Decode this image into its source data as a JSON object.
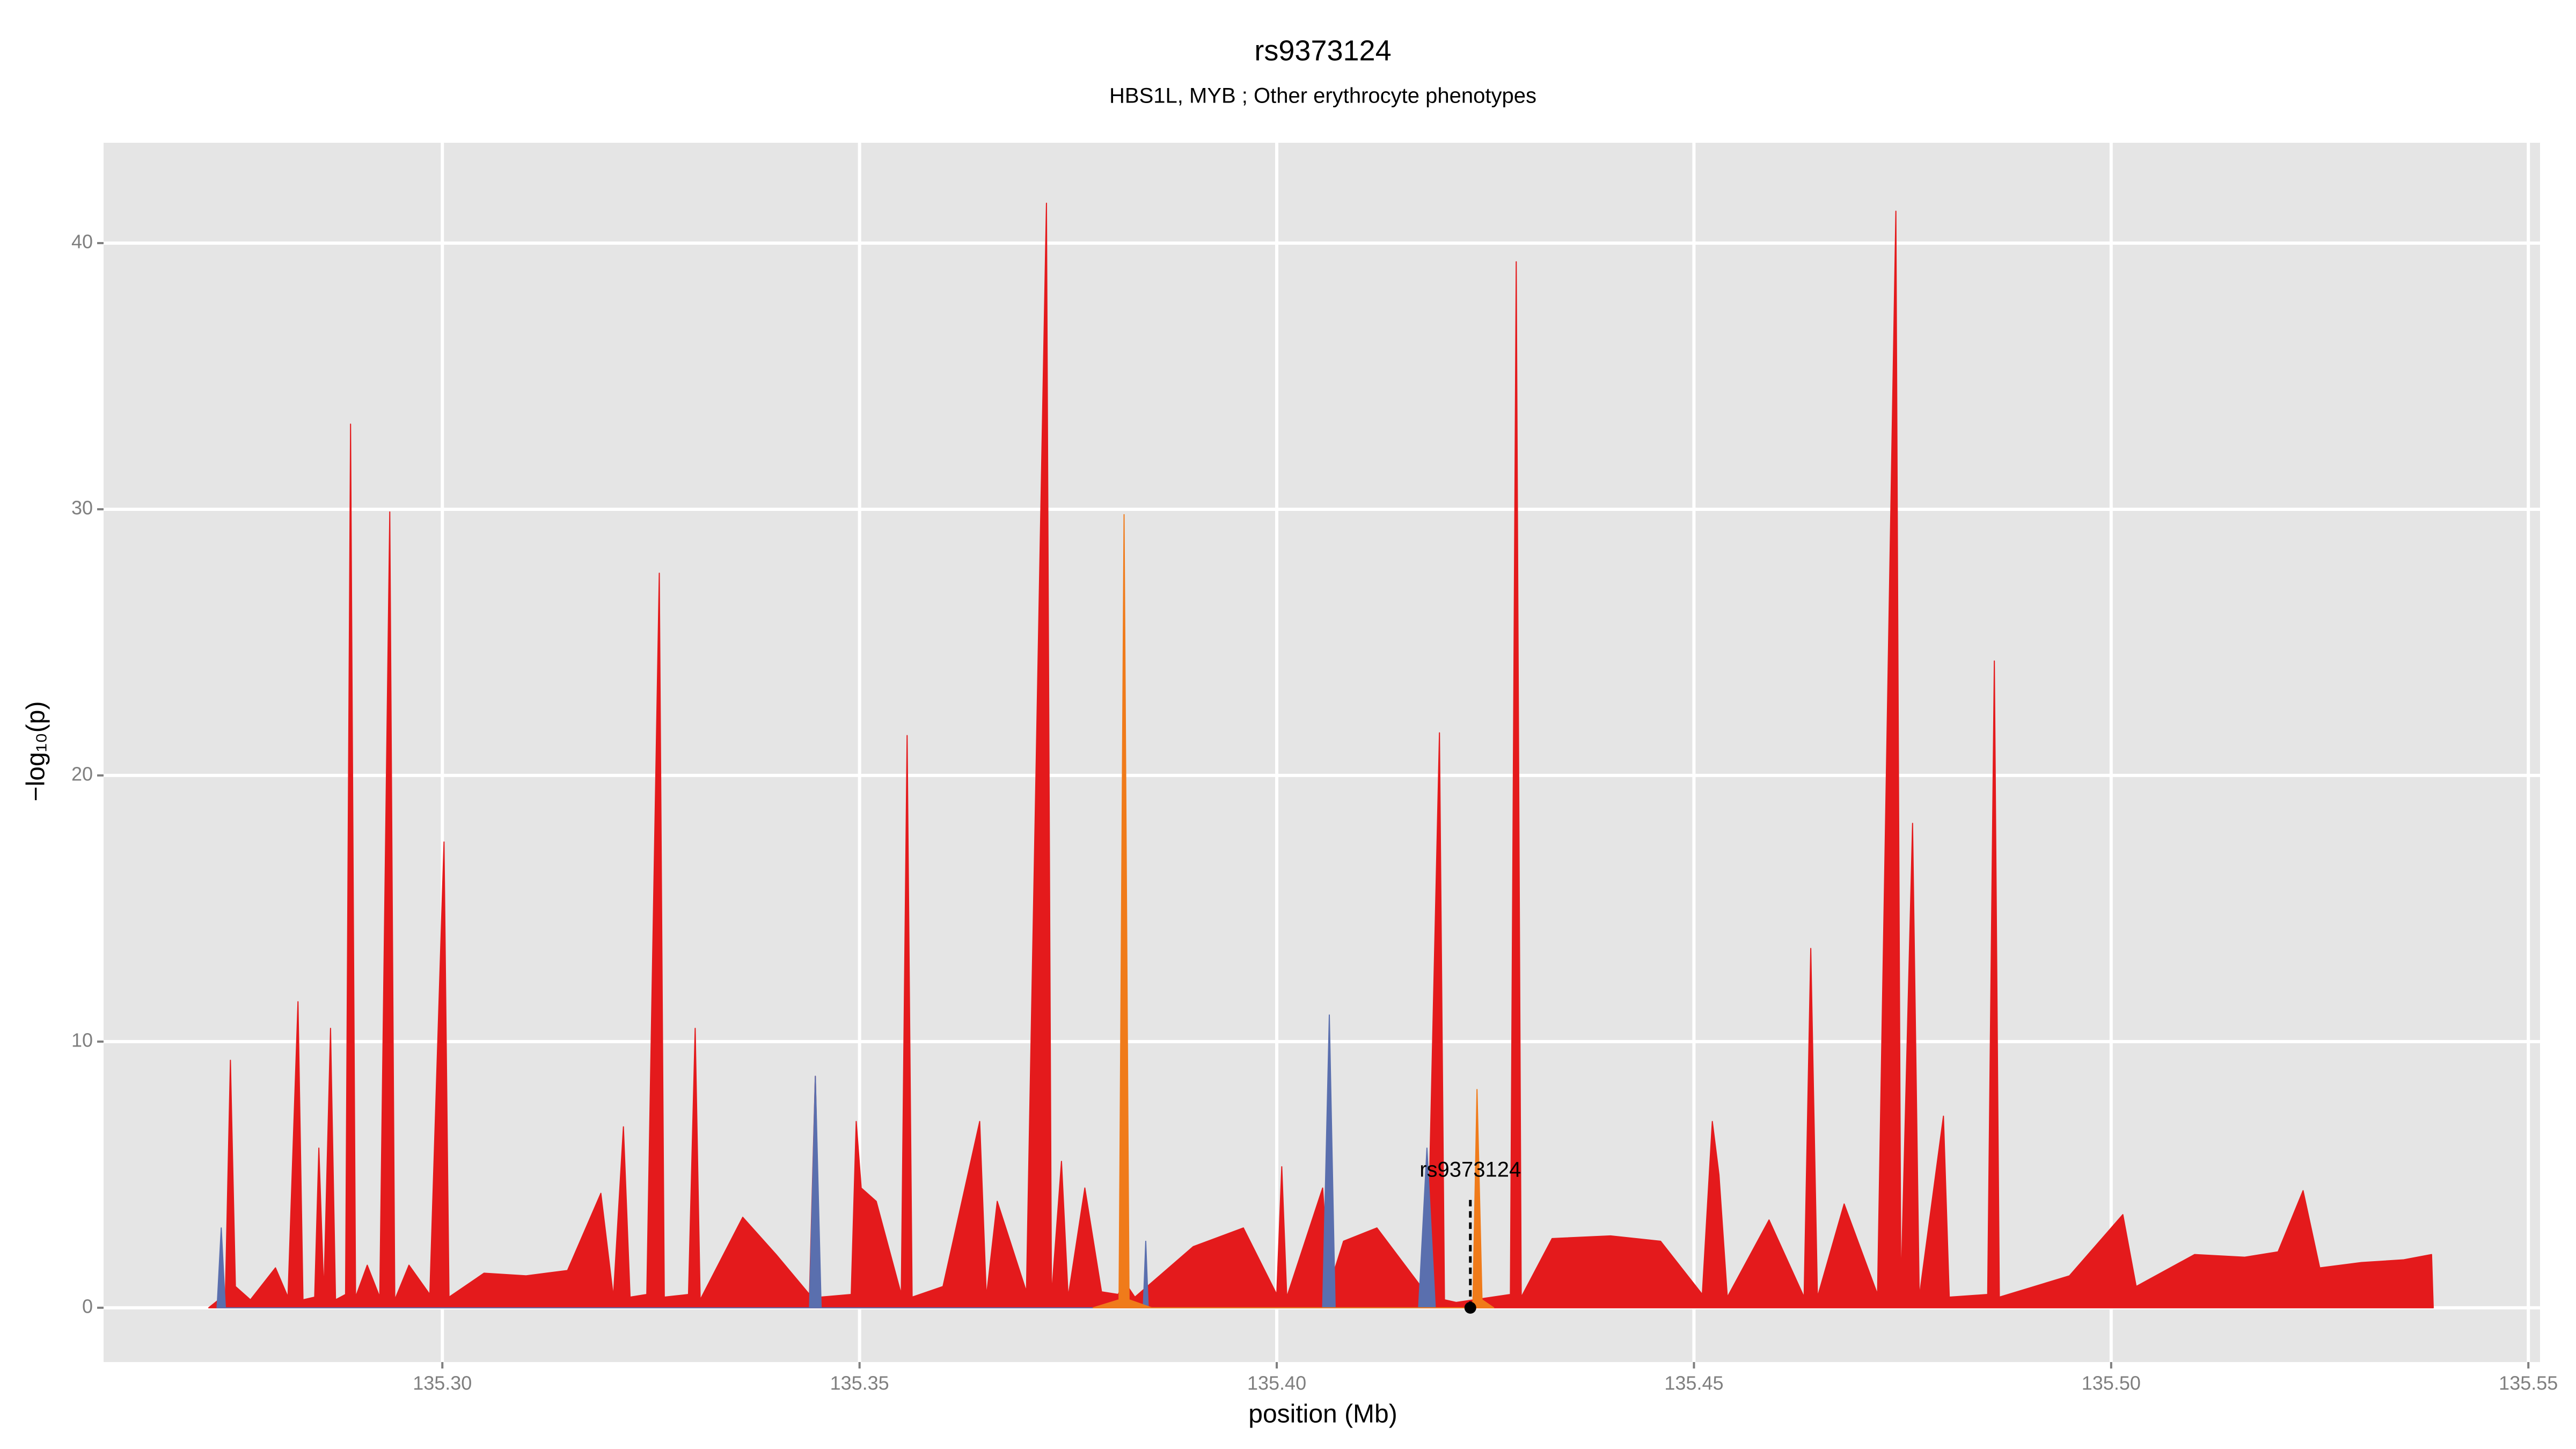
{
  "chart_data": {
    "type": "area",
    "title": "rs9373124",
    "subtitle": "HBS1L, MYB ; Other erythrocyte phenotypes",
    "xlabel": "position (Mb)",
    "ylabel": "−log₁₀(p)",
    "xlim": [
      135.2594,
      135.5514
    ],
    "ylim": [
      -2.04,
      43.77
    ],
    "xticks": [
      {
        "value": 135.3,
        "label": "135.30"
      },
      {
        "value": 135.35,
        "label": "135.35"
      },
      {
        "value": 135.4,
        "label": "135.40"
      },
      {
        "value": 135.45,
        "label": "135.45"
      },
      {
        "value": 135.5,
        "label": "135.50"
      },
      {
        "value": 135.55,
        "label": "135.55"
      }
    ],
    "yticks": [
      0,
      10,
      20,
      30,
      40
    ],
    "grid": true,
    "series": [
      {
        "color": "#e41a1c",
        "x": [
          135.272,
          135.274,
          135.2746,
          135.2752,
          135.277,
          135.28,
          135.2815,
          135.2827,
          135.2833,
          135.2847,
          135.2852,
          135.2858,
          135.2866,
          135.2872,
          135.2884,
          135.289,
          135.2896,
          135.291,
          135.2925,
          135.2937,
          135.2943,
          135.296,
          135.2985,
          135.3002,
          135.3008,
          135.305,
          135.31,
          135.315,
          135.319,
          135.3205,
          135.3217,
          135.3225,
          135.3245,
          135.326,
          135.3266,
          135.3295,
          135.3303,
          135.3309,
          135.336,
          135.34,
          135.344,
          135.3447,
          135.3453,
          135.349,
          135.3496,
          135.3502,
          135.352,
          135.355,
          135.3557,
          135.3563,
          135.36,
          135.3644,
          135.3652,
          135.3665,
          135.37,
          135.3724,
          135.373,
          135.3742,
          135.375,
          135.377,
          135.379,
          135.381,
          135.3817,
          135.383,
          135.39,
          135.396,
          135.4,
          135.4006,
          135.4012,
          135.4055,
          135.4063,
          135.408,
          135.412,
          135.418,
          135.4195,
          135.4201,
          135.4215,
          135.428,
          135.4287,
          135.4293,
          135.433,
          135.44,
          135.446,
          135.451,
          135.4522,
          135.453,
          135.454,
          135.459,
          135.4632,
          135.464,
          135.4648,
          135.468,
          135.472,
          135.4742,
          135.4748,
          135.4762,
          135.477,
          135.4799,
          135.4806,
          135.4852,
          135.486,
          135.4866,
          135.495,
          135.5014,
          135.503,
          135.51,
          135.516,
          135.52,
          135.523,
          135.525,
          135.53,
          135.535,
          135.5384,
          135.5386
        ],
        "values": [
          0,
          0.5,
          9.3,
          0.8,
          0.3,
          1.5,
          0.4,
          11.5,
          0.3,
          0.4,
          6,
          0.5,
          10.5,
          0.3,
          0.5,
          33.2,
          0.4,
          1.6,
          0.4,
          29.9,
          0.3,
          1.6,
          0.5,
          17.5,
          0.4,
          1.3,
          1.2,
          1.4,
          4.3,
          0.4,
          6.8,
          0.4,
          0.5,
          27.6,
          0.4,
          0.5,
          10.5,
          0.3,
          3.4,
          2.0,
          0.5,
          8.7,
          0.4,
          0.5,
          7,
          4.5,
          4,
          0.5,
          21.5,
          0.4,
          0.8,
          7,
          0.4,
          4,
          0.6,
          41.5,
          0.4,
          5.5,
          0.4,
          4.5,
          0.6,
          0.5,
          1.0,
          0.4,
          2.3,
          3.0,
          0.5,
          5.3,
          0.4,
          4.5,
          0.8,
          2.5,
          3.0,
          0.5,
          21.6,
          0.3,
          0.2,
          0.5,
          39.3,
          0.4,
          2.6,
          2.7,
          2.5,
          0.5,
          7,
          5,
          0.4,
          3.3,
          0.4,
          13.5,
          0.4,
          3.9,
          0.5,
          41.2,
          0.5,
          18.2,
          0.4,
          7.2,
          0.4,
          0.5,
          24.3,
          0.4,
          1.2,
          3.5,
          0.8,
          2,
          1.9,
          2.1,
          4.4,
          1.5,
          1.7,
          1.8,
          2,
          0
        ]
      },
      {
        "color": "#5a6fae",
        "x": [
          135.273,
          135.2735,
          135.274,
          135.344,
          135.3447,
          135.3454,
          135.384,
          135.3843,
          135.3846,
          135.4055,
          135.4063,
          135.407,
          135.417,
          135.418,
          135.419
        ],
        "values": [
          0,
          3,
          0,
          0,
          8.7,
          0,
          0,
          2.5,
          0,
          0,
          11,
          0,
          0,
          6,
          0
        ]
      },
      {
        "color": "#f07b1a",
        "x": [
          135.378,
          135.3811,
          135.3817,
          135.3823,
          135.385,
          135.4235,
          135.424,
          135.4246,
          135.426
        ],
        "values": [
          0,
          0.3,
          29.8,
          0.3,
          0,
          0,
          8.2,
          0.3,
          0
        ]
      }
    ],
    "annotation": {
      "label": "rs9373124",
      "x": 135.4232,
      "y": 0
    }
  }
}
